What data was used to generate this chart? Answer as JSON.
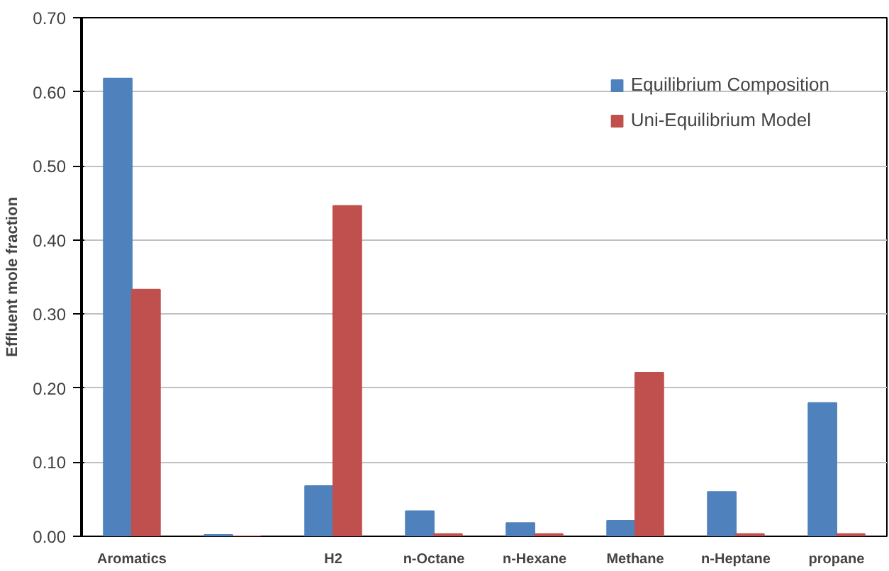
{
  "chart_data": {
    "type": "bar",
    "ylabel": "Effluent mole fraction",
    "categories": [
      "Aromatics",
      null,
      "H2",
      "n-Octane",
      "n-Hexane",
      "Methane",
      "n-Heptane",
      "propane"
    ],
    "series": [
      {
        "name": "Equilibrium Composition",
        "color": "#4f81bd",
        "values": [
          0.618,
          0.002,
          0.068,
          0.034,
          0.018,
          0.021,
          0.06,
          0.18
        ]
      },
      {
        "name": "Uni-Equilibrium Model",
        "color": "#c0504d",
        "values": [
          0.333,
          0.0,
          0.446,
          0.003,
          0.003,
          0.221,
          0.003,
          0.003
        ]
      }
    ],
    "ylim": [
      0,
      0.7
    ],
    "yticks": [
      {
        "value": 0,
        "label": "0.00"
      },
      {
        "value": 0.1,
        "label": "0.10"
      },
      {
        "value": 0.2,
        "label": "0.20"
      },
      {
        "value": 0.3,
        "label": "0.30"
      },
      {
        "value": 0.4,
        "label": "0.40"
      },
      {
        "value": 0.5,
        "label": "0.50"
      },
      {
        "value": 0.6,
        "label": "0.60"
      },
      {
        "value": 0.7,
        "label": "0.70"
      }
    ],
    "grid": "y",
    "legend": "top right"
  }
}
